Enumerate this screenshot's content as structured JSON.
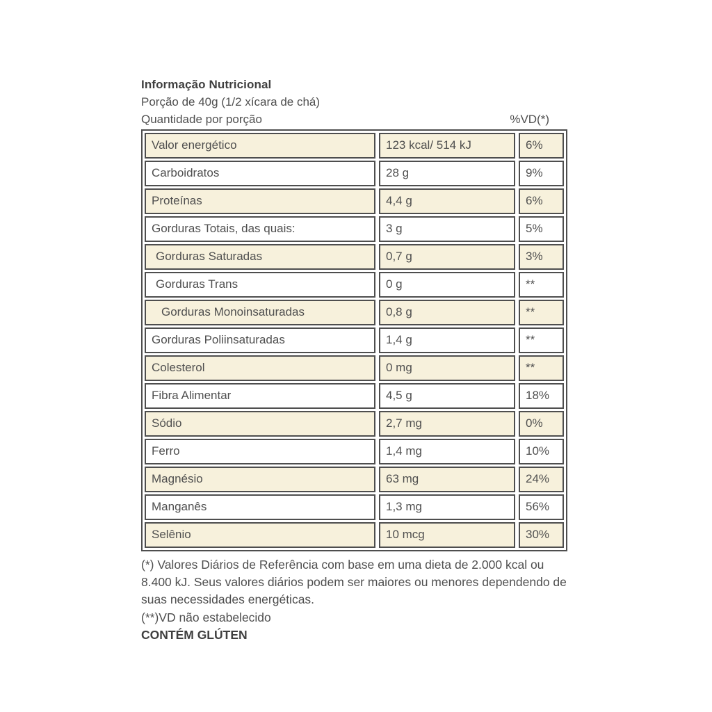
{
  "header": {
    "title": "Informação Nutricional",
    "portion": "Porção de 40g (1/2 xícara de chá)",
    "quantity_label": "Quantidade por porção",
    "vd_label": "%VD(*)"
  },
  "table": {
    "rows": [
      {
        "label": "Valor energético",
        "amount": "123 kcal/ 514 kJ",
        "dv": "6%",
        "indent": 0
      },
      {
        "label": "Carboidratos",
        "amount": "28 g",
        "dv": "9%",
        "indent": 0
      },
      {
        "label": "Proteínas",
        "amount": "4,4 g",
        "dv": "6%",
        "indent": 0
      },
      {
        "label": "Gorduras Totais, das quais:",
        "amount": "3 g",
        "dv": "5%",
        "indent": 0
      },
      {
        "label": "Gorduras Saturadas",
        "amount": "0,7 g",
        "dv": "3%",
        "indent": 1
      },
      {
        "label": "Gorduras Trans",
        "amount": "0 g",
        "dv": "**",
        "indent": 1
      },
      {
        "label": "Gorduras Monoinsaturadas",
        "amount": "0,8 g",
        "dv": "**",
        "indent": 2
      },
      {
        "label": "Gorduras Poliinsaturadas",
        "amount": "1,4 g",
        "dv": "**",
        "indent": 0
      },
      {
        "label": "Colesterol",
        "amount": "0 mg",
        "dv": "**",
        "indent": 0
      },
      {
        "label": "Fibra Alimentar",
        "amount": "4,5 g",
        "dv": "18%",
        "indent": 0
      },
      {
        "label": "Sódio",
        "amount": "2,7 mg",
        "dv": "0%",
        "indent": 0
      },
      {
        "label": "Ferro",
        "amount": "1,4 mg",
        "dv": "10%",
        "indent": 0
      },
      {
        "label": "Magnésio",
        "amount": "63 mg",
        "dv": "24%",
        "indent": 0
      },
      {
        "label": "Manganês",
        "amount": "1,3 mg",
        "dv": "56%",
        "indent": 0
      },
      {
        "label": "Selênio",
        "amount": "10 mcg",
        "dv": "30%",
        "indent": 0
      }
    ]
  },
  "footer": {
    "reference_note": "(*) Valores Diários de Referência com base em uma dieta de 2.000 kcal ou 8.400 kJ. Seus valores diários podem ser maiores ou menores dependendo de suas necessidades energéticas.",
    "nd_note": "(**)VD não estabelecido",
    "gluten_note": "CONTÉM GLÚTEN"
  },
  "colors": {
    "row_cream": "#f7f1dc",
    "row_white": "#ffffff",
    "border": "#4e4e4e",
    "text": "#4f4f4f"
  }
}
